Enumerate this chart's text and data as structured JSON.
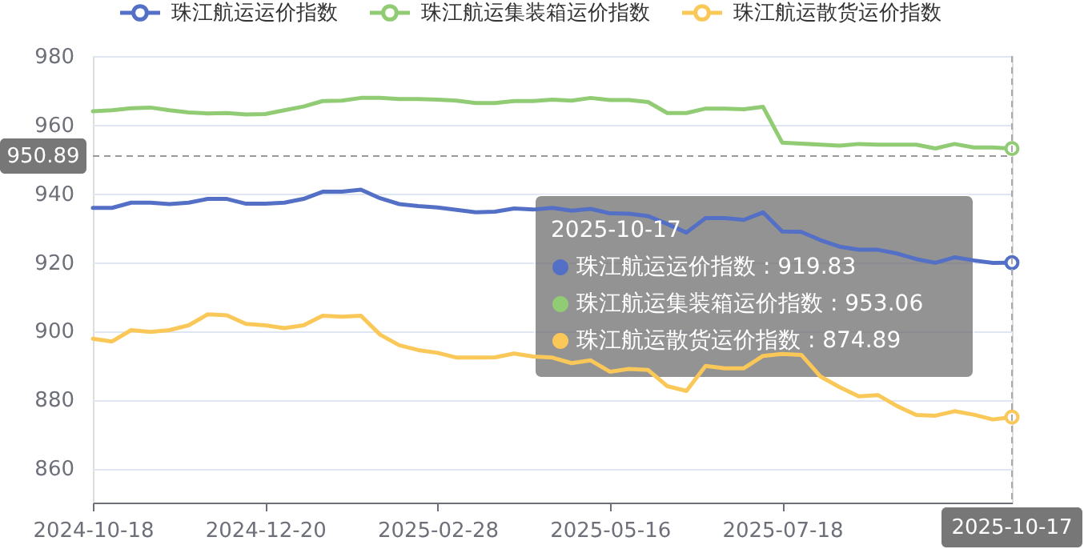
{
  "chart_data": {
    "type": "line",
    "categories": [
      "2024-10-18",
      null,
      null,
      null,
      null,
      null,
      null,
      null,
      null,
      "2024-12-20",
      null,
      null,
      null,
      null,
      null,
      null,
      null,
      null,
      "2025-02-28",
      null,
      null,
      null,
      null,
      null,
      null,
      null,
      null,
      "2025-05-16",
      null,
      null,
      null,
      null,
      null,
      null,
      null,
      null,
      "2025-07-18",
      null,
      null,
      null,
      null,
      null,
      null,
      null,
      null,
      null,
      null,
      null,
      "2025-10-17"
    ],
    "series": [
      {
        "name": "珠江航运运价指数",
        "color": "#5470c6",
        "values": [
          935.8,
          935.8,
          937.3,
          937.3,
          936.9,
          937.3,
          938.4,
          938.4,
          937.0,
          937.0,
          937.3,
          938.4,
          940.5,
          940.5,
          941.1,
          938.6,
          936.9,
          936.3,
          935.9,
          935.2,
          934.5,
          934.7,
          935.6,
          935.3,
          935.8,
          935.0,
          935.5,
          934.2,
          934.1,
          933.4,
          931.1,
          928.6,
          932.8,
          932.8,
          932.3,
          934.5,
          928.9,
          928.8,
          926.4,
          924.5,
          923.6,
          923.6,
          922.5,
          920.9,
          919.8,
          921.4,
          920.5,
          919.8,
          919.83
        ]
      },
      {
        "name": "珠江航运集装箱运价指数",
        "color": "#91cc75",
        "values": [
          963.9,
          964.2,
          964.8,
          965.0,
          964.2,
          963.6,
          963.3,
          963.4,
          963.0,
          963.1,
          964.2,
          965.3,
          966.9,
          967.0,
          967.8,
          967.8,
          967.5,
          967.5,
          967.3,
          967.0,
          966.3,
          966.3,
          966.9,
          966.9,
          967.3,
          967.0,
          967.8,
          967.2,
          967.2,
          966.6,
          963.4,
          963.4,
          964.7,
          964.7,
          964.5,
          965.2,
          954.8,
          954.5,
          954.2,
          953.9,
          954.4,
          954.2,
          954.2,
          954.2,
          953.1,
          954.4,
          953.4,
          953.4,
          953.06
        ]
      },
      {
        "name": "珠江航运散货运价指数",
        "color": "#fac858",
        "values": [
          897.7,
          896.9,
          900.2,
          899.7,
          900.2,
          901.6,
          904.8,
          904.5,
          902.0,
          901.6,
          900.8,
          901.6,
          904.4,
          904.1,
          904.4,
          898.9,
          895.8,
          894.4,
          893.6,
          892.2,
          892.2,
          892.3,
          893.4,
          892.5,
          892.2,
          890.6,
          891.4,
          888.1,
          888.9,
          888.6,
          883.9,
          882.5,
          889.8,
          889.1,
          889.1,
          892.7,
          893.3,
          893.0,
          886.7,
          883.6,
          880.9,
          881.3,
          878.1,
          875.5,
          875.3,
          876.6,
          875.6,
          874.2,
          874.89
        ]
      }
    ],
    "ylim": [
      850,
      980
    ],
    "yticks": [
      860,
      880,
      900,
      920,
      940,
      960,
      980
    ],
    "grid": "y",
    "legend": "top",
    "ref_lines": [
      {
        "axis": "y",
        "value": 950.89,
        "label": "950.89"
      },
      {
        "axis": "x",
        "value": "2025-10-17"
      }
    ],
    "annotations": [
      "2025-10-17",
      "珠江航运运价指数 : 919.83",
      "珠江航运集装箱运价指数 : 953.06",
      "珠江航运散货运价指数 : 874.89"
    ]
  }
}
